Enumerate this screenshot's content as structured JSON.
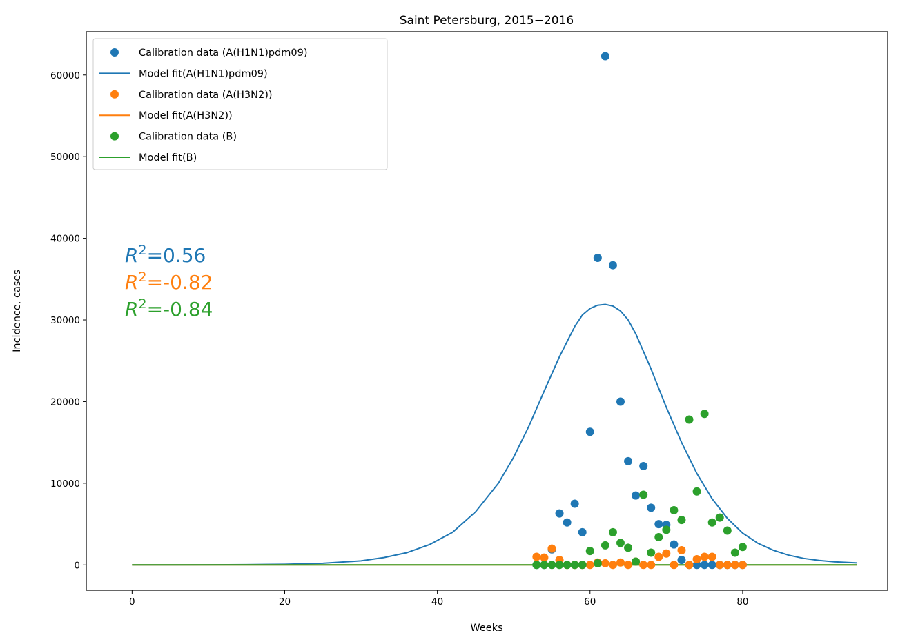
{
  "chart_data": {
    "type": "scatter",
    "title": "Saint Petersburg, 2015−2016",
    "xlabel": "Weeks",
    "ylabel": "Incidence, cases",
    "xlim": [
      -6,
      99
    ],
    "ylim": [
      -3100,
      65300
    ],
    "xticks": [
      0,
      20,
      40,
      60,
      80
    ],
    "yticks": [
      0,
      10000,
      20000,
      30000,
      40000,
      50000,
      60000
    ],
    "grid": false,
    "legend_position": "top-left",
    "legend": [
      {
        "label": "Calibration data (A(H1N1)pdm09)",
        "kind": "marker",
        "color": "#1f77b4"
      },
      {
        "label": "Model fit(A(H1N1)pdm09)",
        "kind": "line",
        "color": "#1f77b4"
      },
      {
        "label": "Calibration data (A(H3N2))",
        "kind": "marker",
        "color": "#ff7f0e"
      },
      {
        "label": "Model fit(A(H3N2))",
        "kind": "line",
        "color": "#ff7f0e"
      },
      {
        "label": "Calibration data (B)",
        "kind": "marker",
        "color": "#2ca02c"
      },
      {
        "label": "Model fit(B)",
        "kind": "line",
        "color": "#2ca02c"
      }
    ],
    "annotations": [
      {
        "base": "R",
        "sup": "2",
        "value": "=0.56",
        "color": "#1f77b4"
      },
      {
        "base": "R",
        "sup": "2",
        "value": "=-0.82",
        "color": "#ff7f0e"
      },
      {
        "base": "R",
        "sup": "2",
        "value": "=-0.84",
        "color": "#2ca02c"
      }
    ],
    "scatter_series": [
      {
        "name": "Calibration data (A(H1N1)pdm09)",
        "color": "#1f77b4",
        "points": [
          [
            53,
            0
          ],
          [
            54,
            0
          ],
          [
            55,
            1900
          ],
          [
            56,
            6300
          ],
          [
            57,
            5200
          ],
          [
            58,
            7500
          ],
          [
            59,
            4000
          ],
          [
            60,
            16300
          ],
          [
            61,
            37600
          ],
          [
            62,
            62300
          ],
          [
            63,
            36700
          ],
          [
            64,
            20000
          ],
          [
            65,
            12700
          ],
          [
            66,
            8500
          ],
          [
            67,
            12100
          ],
          [
            68,
            7000
          ],
          [
            69,
            5000
          ],
          [
            70,
            4900
          ],
          [
            71,
            2500
          ],
          [
            72,
            600
          ],
          [
            73,
            0
          ],
          [
            74,
            0
          ],
          [
            75,
            0
          ],
          [
            76,
            0
          ],
          [
            77,
            0
          ],
          [
            78,
            0
          ],
          [
            79,
            0
          ],
          [
            80,
            0
          ]
        ]
      },
      {
        "name": "Calibration data (A(H3N2))",
        "color": "#ff7f0e",
        "points": [
          [
            53,
            1000
          ],
          [
            54,
            900
          ],
          [
            55,
            2000
          ],
          [
            56,
            600
          ],
          [
            57,
            0
          ],
          [
            58,
            0
          ],
          [
            59,
            0
          ],
          [
            60,
            0
          ],
          [
            61,
            300
          ],
          [
            62,
            200
          ],
          [
            63,
            0
          ],
          [
            64,
            300
          ],
          [
            65,
            0
          ],
          [
            66,
            400
          ],
          [
            67,
            0
          ],
          [
            68,
            0
          ],
          [
            69,
            1000
          ],
          [
            70,
            1400
          ],
          [
            71,
            0
          ],
          [
            72,
            1800
          ],
          [
            73,
            0
          ],
          [
            74,
            700
          ],
          [
            75,
            1000
          ],
          [
            76,
            1000
          ],
          [
            77,
            0
          ],
          [
            78,
            0
          ],
          [
            79,
            0
          ],
          [
            80,
            0
          ]
        ]
      },
      {
        "name": "Calibration data (B)",
        "color": "#2ca02c",
        "points": [
          [
            53,
            0
          ],
          [
            54,
            0
          ],
          [
            55,
            0
          ],
          [
            56,
            0
          ],
          [
            57,
            0
          ],
          [
            58,
            0
          ],
          [
            59,
            0
          ],
          [
            60,
            1700
          ],
          [
            61,
            200
          ],
          [
            62,
            2400
          ],
          [
            63,
            4000
          ],
          [
            64,
            2700
          ],
          [
            65,
            2100
          ],
          [
            66,
            400
          ],
          [
            67,
            8600
          ],
          [
            68,
            1500
          ],
          [
            69,
            3400
          ],
          [
            70,
            4300
          ],
          [
            71,
            6700
          ],
          [
            72,
            5500
          ],
          [
            73,
            17800
          ],
          [
            74,
            9000
          ],
          [
            75,
            18500
          ],
          [
            76,
            5200
          ],
          [
            77,
            5800
          ],
          [
            78,
            4200
          ],
          [
            79,
            1500
          ],
          [
            80,
            2200
          ]
        ]
      }
    ],
    "line_series": [
      {
        "name": "Model fit(A(H1N1)pdm09)",
        "color": "#1f77b4",
        "points": [
          [
            0,
            0
          ],
          [
            10,
            10
          ],
          [
            15,
            30
          ],
          [
            20,
            80
          ],
          [
            25,
            200
          ],
          [
            30,
            500
          ],
          [
            33,
            900
          ],
          [
            36,
            1500
          ],
          [
            39,
            2500
          ],
          [
            42,
            4000
          ],
          [
            45,
            6500
          ],
          [
            48,
            10000
          ],
          [
            50,
            13200
          ],
          [
            52,
            17000
          ],
          [
            54,
            21300
          ],
          [
            56,
            25500
          ],
          [
            58,
            29200
          ],
          [
            59,
            30600
          ],
          [
            60,
            31400
          ],
          [
            61,
            31800
          ],
          [
            62,
            31900
          ],
          [
            63,
            31700
          ],
          [
            64,
            31100
          ],
          [
            65,
            30000
          ],
          [
            66,
            28300
          ],
          [
            68,
            24000
          ],
          [
            70,
            19300
          ],
          [
            72,
            15000
          ],
          [
            74,
            11200
          ],
          [
            76,
            8100
          ],
          [
            78,
            5700
          ],
          [
            80,
            3900
          ],
          [
            82,
            2650
          ],
          [
            84,
            1800
          ],
          [
            86,
            1200
          ],
          [
            88,
            800
          ],
          [
            90,
            550
          ],
          [
            92,
            380
          ],
          [
            95,
            250
          ]
        ]
      },
      {
        "name": "Model fit(A(H3N2))",
        "color": "#ff7f0e",
        "points": [
          [
            0,
            0
          ],
          [
            95,
            0
          ]
        ]
      },
      {
        "name": "Model fit(B)",
        "color": "#2ca02c",
        "points": [
          [
            0,
            0
          ],
          [
            95,
            0
          ]
        ]
      }
    ]
  }
}
